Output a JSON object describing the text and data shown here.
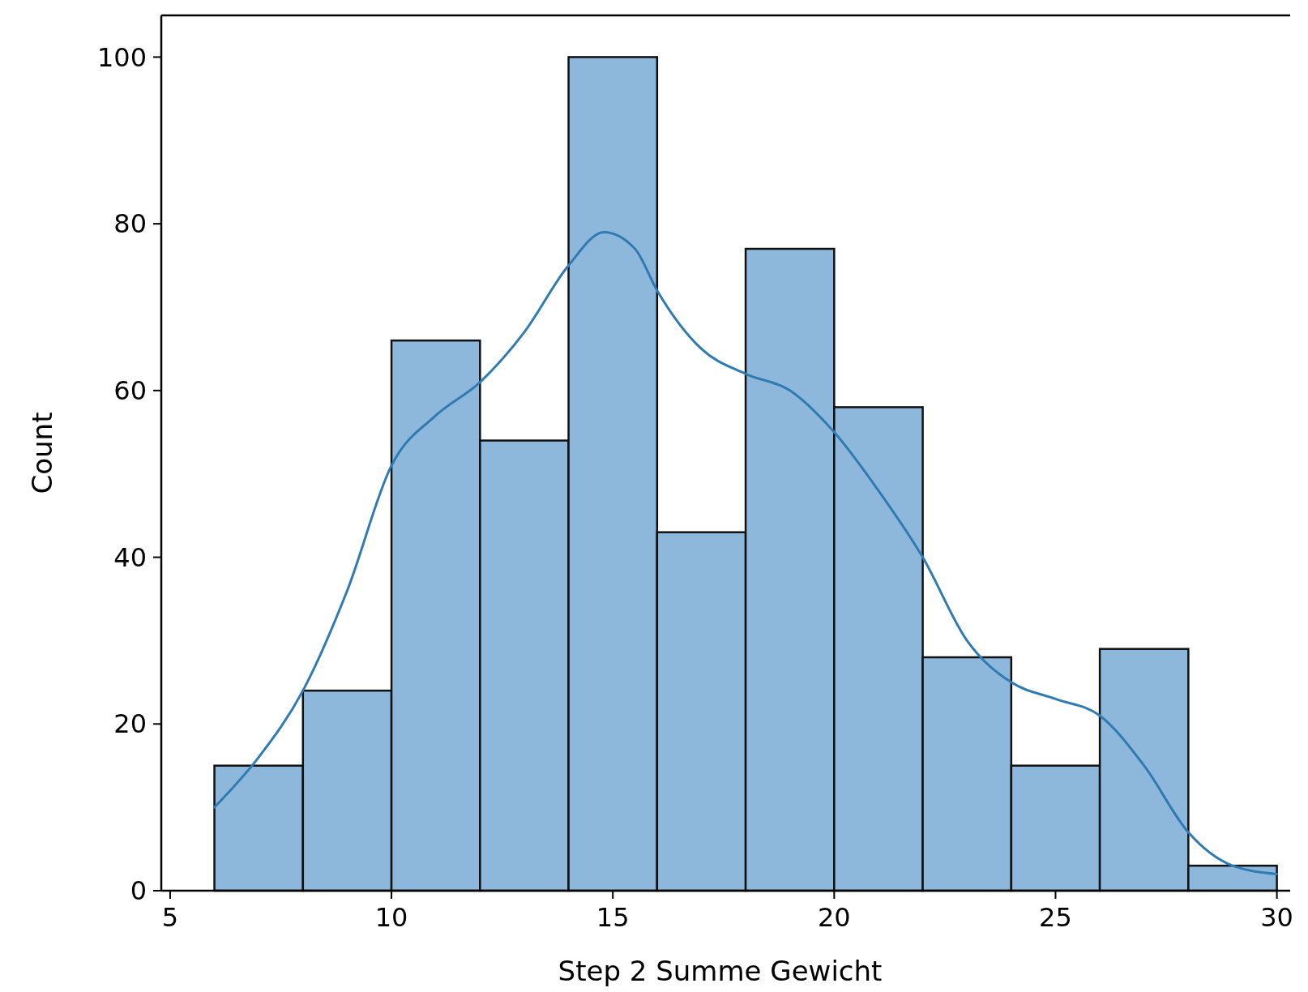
{
  "chart_data": {
    "type": "histogram",
    "xlabel": "Step 2 Summe Gewicht",
    "ylabel": "Count",
    "bins": [
      6,
      8,
      10,
      12,
      14,
      16,
      18,
      20,
      22,
      24,
      26,
      28,
      30
    ],
    "values": [
      15,
      24,
      66,
      54,
      100,
      43,
      77,
      58,
      28,
      15,
      29,
      3
    ],
    "color": "#8db8dc",
    "series": [
      {
        "type": "line",
        "color": "#2f7bb2",
        "x": [
          6,
          7,
          8,
          9,
          10,
          11,
          12,
          13,
          14,
          14.8,
          15.5,
          16,
          17,
          18,
          19,
          20,
          21,
          22,
          23,
          24,
          25,
          26,
          27,
          28,
          29,
          30
        ],
        "values": [
          10,
          16,
          24,
          36,
          51,
          57,
          61,
          67,
          75,
          79,
          77,
          72,
          65,
          62,
          60,
          55,
          48,
          40,
          30,
          25,
          23,
          21,
          15,
          7,
          3,
          2
        ]
      }
    ],
    "xlim": [
      4.8,
      30.3
    ],
    "ylim": [
      0,
      105
    ],
    "xticks": [
      5,
      10,
      15,
      20,
      25,
      30
    ],
    "yticks": [
      0,
      20,
      40,
      60,
      80,
      100
    ],
    "grid": false
  }
}
